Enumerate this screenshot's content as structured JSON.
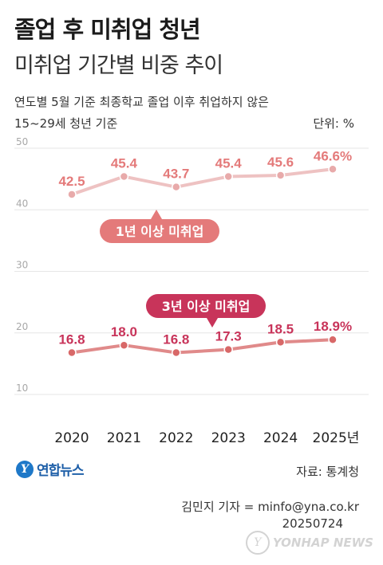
{
  "header": {
    "title": "졸업 후 미취업 청년",
    "subtitle": "미취업 기간별 비중 추이",
    "note_line1": "연도별 5월 기준 최종학교 졸업 이후 취업하지 않은",
    "note_line2": "15~29세 청년 기준",
    "unit": "단위: %"
  },
  "footer": {
    "logo_text": "연합뉴스",
    "logo_mark": "Y",
    "source": "자료: 통계청",
    "credit": "김민지 기자 = minfo@yna.co.kr",
    "date": "20250724",
    "watermark": "YONHAP NEWS"
  },
  "colors": {
    "series1_line": "#eec2c2",
    "series1_label": "#e47a7a",
    "series2_line": "#e08a8a",
    "series2_label": "#c8345a",
    "grid": "#e6e6e6"
  },
  "chart_data": {
    "type": "line",
    "categories": [
      "2020",
      "2021",
      "2022",
      "2023",
      "2024",
      "2025년"
    ],
    "ylim": [
      10,
      50
    ],
    "yticks": [
      10,
      20,
      30,
      40,
      50
    ],
    "grid": true,
    "series": [
      {
        "name": "1년 이상 미취업",
        "values": [
          42.5,
          45.4,
          43.7,
          45.4,
          45.6,
          46.6
        ],
        "value_labels": [
          "42.5",
          "45.4",
          "43.7",
          "45.4",
          "45.6",
          "46.6%"
        ]
      },
      {
        "name": "3년 이상 미취업",
        "values": [
          16.8,
          18.0,
          16.8,
          17.3,
          18.5,
          18.9
        ],
        "value_labels": [
          "16.8",
          "18.0",
          "16.8",
          "17.3",
          "18.5",
          "18.9%"
        ]
      }
    ]
  }
}
